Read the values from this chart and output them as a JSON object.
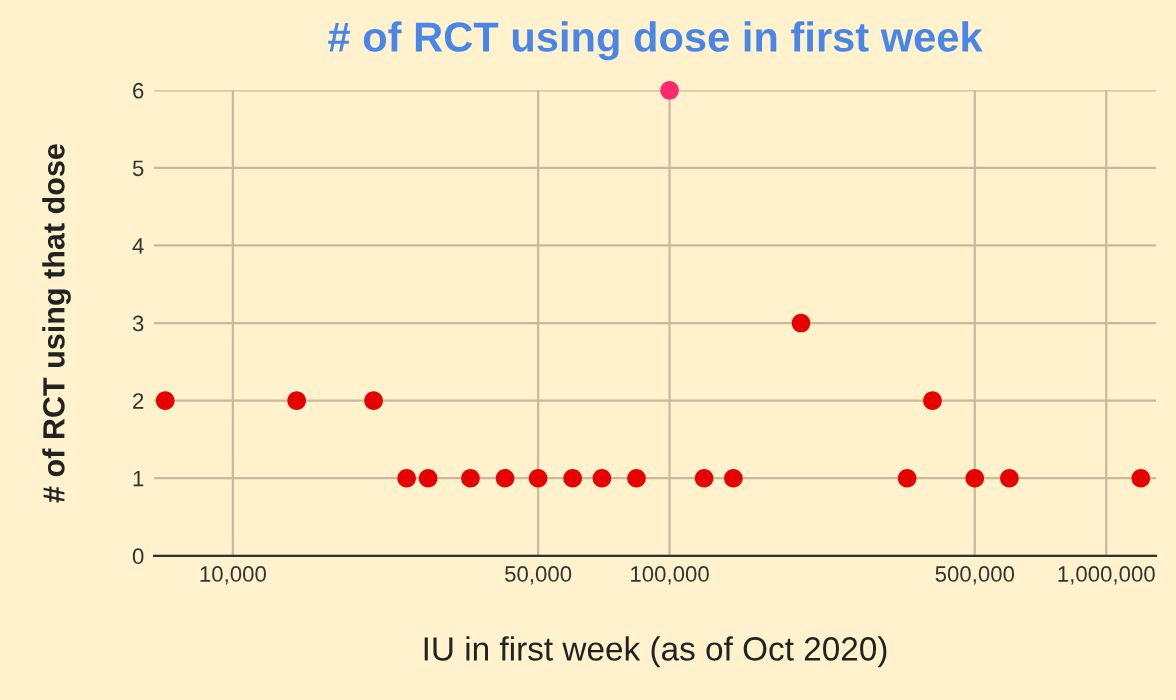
{
  "chart_data": {
    "type": "scatter",
    "title": "# of RCT using dose in first week",
    "xlabel": "IU in first week (as of Oct 2020)",
    "ylabel": "# of RCT using that dose",
    "x": [
      7000,
      14000,
      21000,
      25000,
      28000,
      35000,
      42000,
      50000,
      60000,
      70000,
      84000,
      100000,
      120000,
      140000,
      200000,
      350000,
      400000,
      500000,
      600000,
      1200000
    ],
    "values": [
      2,
      2,
      2,
      1,
      1,
      1,
      1,
      1,
      1,
      1,
      1,
      6,
      1,
      1,
      3,
      1,
      2,
      1,
      1,
      1
    ],
    "colors": [
      "#e60000",
      "#e60000",
      "#e60000",
      "#e60000",
      "#e60000",
      "#e60000",
      "#e60000",
      "#e60000",
      "#e60000",
      "#e60000",
      "#e60000",
      "#ff2a6d",
      "#e60000",
      "#e60000",
      "#e60000",
      "#e60000",
      "#e60000",
      "#e60000",
      "#e60000",
      "#e60000"
    ],
    "log": "x",
    "xlim": [
      6600,
      1300000
    ],
    "xticks": [
      {
        "value": 10000,
        "label": "10,000"
      },
      {
        "value": 50000,
        "label": "50,000"
      },
      {
        "value": 100000,
        "label": "100,000"
      },
      {
        "value": 500000,
        "label": "500,000"
      },
      {
        "value": 1000000,
        "label": "1,000,000"
      }
    ],
    "ylim": [
      0,
      6
    ],
    "yticks": [
      0,
      1,
      2,
      3,
      4,
      5,
      6
    ],
    "grid": true,
    "marker": "circle"
  }
}
